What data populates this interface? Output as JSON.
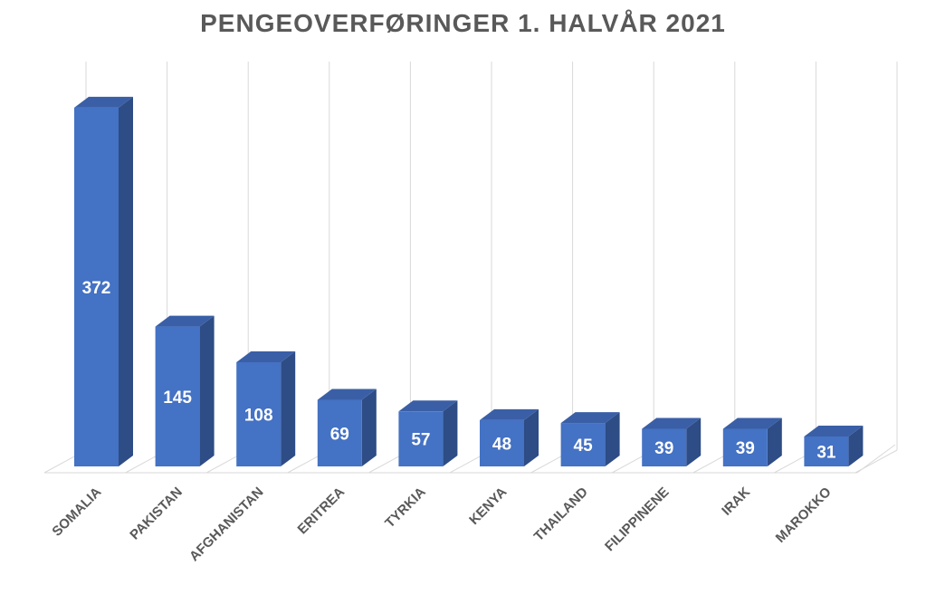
{
  "chart_data": {
    "type": "bar",
    "style": "3d-column",
    "title": "PENGEOVERFØRINGER 1. HALVÅR 2021",
    "xlabel": "",
    "ylabel": "",
    "categories": [
      "SOMALIA",
      "PAKISTAN",
      "AFGHANISTAN",
      "ERITREA",
      "TYRKIA",
      "KENYA",
      "THAILAND",
      "FILIPPINENE",
      "IRAK",
      "MAROKKO"
    ],
    "values": [
      372,
      145,
      108,
      69,
      57,
      48,
      45,
      39,
      39,
      31
    ],
    "data_labels": true,
    "ylim": [
      0,
      400
    ],
    "grid": "vertical",
    "legend": "none",
    "colors": {
      "bar_front": "#4472C4",
      "bar_side": "#2E4C85",
      "bar_top": "#3A5FA6",
      "grid": "#D9D9D9",
      "text": "#595959",
      "value_text": "#FFFFFF"
    }
  }
}
